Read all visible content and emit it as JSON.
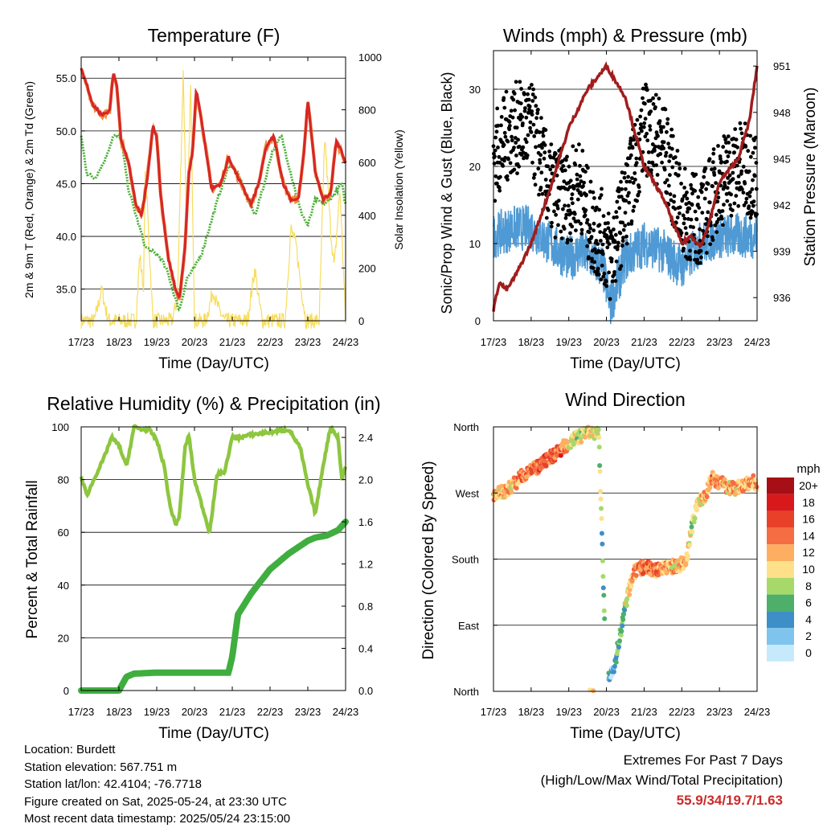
{
  "x_tick_labels": [
    "17/23",
    "18/23",
    "19/23",
    "20/23",
    "21/23",
    "22/23",
    "23/23",
    "24/23"
  ],
  "x_axis_label": "Time (Day/UTC)",
  "panels": {
    "temperature": {
      "title": "Temperature (F)",
      "left_label": "2m & 9m T (Red, Orange) & 2m Td (Green)",
      "right_label": "Solar Insolation (Yellow)",
      "left_ticks": [
        "55.0",
        "50.0",
        "45.0",
        "40.0",
        "35.0"
      ],
      "right_ticks": [
        "1000",
        "800",
        "600",
        "400",
        "200",
        "0"
      ]
    },
    "winds": {
      "title": "Winds (mph) & Pressure (mb)",
      "left_label": "Sonic/Prop Wind & Gust (Blue, Black)",
      "right_label": "Station Pressure (Maroon)",
      "left_ticks": [
        "30",
        "20",
        "10",
        "0"
      ],
      "right_ticks": [
        "951",
        "948",
        "945",
        "942",
        "939",
        "936"
      ]
    },
    "humidity": {
      "title": "Relative Humidity (%) & Precipitation (in)",
      "left_label": "Percent & Total Rainfall",
      "left_ticks": [
        "100",
        "80",
        "60",
        "40",
        "20",
        "0"
      ],
      "right_ticks": [
        "2.4",
        "2.0",
        "1.6",
        "1.2",
        "0.8",
        "0.4",
        "0.0"
      ]
    },
    "direction": {
      "title": "Wind Direction",
      "left_label": "Direction (Colored By Speed)",
      "left_ticks": [
        "North",
        "West",
        "South",
        "East",
        "North"
      ],
      "legend_title": "mph",
      "legend_labels": [
        "20+",
        "18",
        "16",
        "14",
        "12",
        "10",
        "8",
        "6",
        "4",
        "2",
        "0"
      ],
      "legend_colors": [
        "#a50f15",
        "#d7191c",
        "#e8412a",
        "#f46d43",
        "#fdae61",
        "#fee08b",
        "#a6d96a",
        "#4daf6a",
        "#3e8fc8",
        "#7fc4ec",
        "#c6e9fb"
      ]
    }
  },
  "info": {
    "location": "Location: Burdett",
    "elevation": "Station elevation: 567.751 m",
    "latlon": "Station lat/lon: 42.4104; -76.7718",
    "created": "Figure created on Sat, 2025-05-24, at 23:30 UTC",
    "latest": "Most recent data timestamp: 2025/05/24 23:15:00"
  },
  "extremes": {
    "line1": "Extremes For Past 7 Days",
    "line2": "(High/Low/Max Wind/Total Precipitation)",
    "values": "55.9/34/19.7/1.63"
  },
  "chart_data": [
    {
      "type": "line",
      "title": "Temperature (F)",
      "x_unit": "days since 17/23 UTC",
      "xlim": [
        0,
        7
      ],
      "ylim": [
        32,
        57
      ],
      "y2lim": [
        0,
        1000
      ],
      "series": [
        {
          "name": "2m T",
          "color": "#d62728",
          "x": [
            0,
            0.1,
            0.3,
            0.55,
            0.75,
            0.85,
            0.95,
            1.05,
            1.25,
            1.45,
            1.6,
            1.75,
            1.9,
            2.0,
            2.1,
            2.3,
            2.5,
            2.6,
            2.75,
            2.85,
            2.95,
            3.05,
            3.25,
            3.45,
            3.7,
            3.9,
            4.1,
            4.3,
            4.5,
            4.7,
            4.9,
            5.1,
            5.35,
            5.55,
            5.75,
            5.9,
            6.0,
            6.2,
            6.4,
            6.6,
            6.75,
            6.9,
            7.0
          ],
          "y": [
            55.8,
            55.0,
            52.5,
            51.5,
            51.8,
            55.6,
            54.2,
            49.2,
            47.0,
            43.0,
            42.0,
            45.5,
            50.5,
            49.5,
            44.0,
            38.0,
            35.0,
            34.0,
            39.0,
            46.0,
            48.0,
            54.0,
            49.5,
            44.5,
            45.0,
            47.5,
            46.0,
            44.5,
            43.0,
            45.0,
            48.5,
            49.5,
            45.0,
            43.5,
            43.5,
            48.0,
            53.0,
            46.0,
            43.5,
            44.0,
            49.0,
            48.0,
            47.0
          ]
        },
        {
          "name": "2m Td",
          "color": "#4daf3a",
          "x": [
            0,
            0.15,
            0.35,
            0.6,
            0.85,
            1.05,
            1.25,
            1.45,
            1.7,
            1.9,
            2.1,
            2.3,
            2.5,
            2.6,
            2.8,
            3.0,
            3.2,
            3.45,
            3.7,
            3.95,
            4.15,
            4.4,
            4.6,
            4.85,
            5.05,
            5.3,
            5.55,
            5.8,
            6.0,
            6.2,
            6.45,
            6.7,
            6.9,
            7.0
          ],
          "y": [
            49.5,
            46.0,
            45.5,
            47.0,
            49.5,
            49.5,
            44.5,
            42.0,
            39.0,
            38.5,
            38.0,
            36.5,
            34.0,
            33.0,
            36.0,
            37.0,
            38.5,
            41.5,
            44.5,
            47.0,
            46.0,
            43.5,
            42.0,
            45.0,
            48.0,
            49.5,
            46.0,
            42.5,
            41.0,
            43.5,
            43.0,
            44.0,
            45.0,
            43.0
          ]
        },
        {
          "name": "Solar Insolation",
          "color": "#f7dd5e",
          "axis": "right",
          "x": [
            0,
            0.35,
            0.45,
            0.55,
            0.65,
            0.75,
            1.45,
            1.55,
            1.65,
            1.7,
            1.8,
            1.9,
            2.4,
            2.55,
            2.7,
            2.8,
            2.9,
            3.0,
            3.3,
            3.5,
            3.55,
            3.65,
            3.8,
            4.4,
            4.5,
            4.6,
            4.7,
            4.8,
            5.4,
            5.55,
            5.7,
            5.8,
            5.95,
            6.3,
            6.45,
            6.6,
            6.7,
            6.85,
            7.0
          ],
          "y": [
            0,
            0,
            60,
            120,
            40,
            0,
            0,
            250,
            120,
            600,
            280,
            0,
            0,
            80,
            950,
            300,
            900,
            0,
            0,
            120,
            80,
            40,
            0,
            0,
            100,
            200,
            80,
            0,
            0,
            350,
            280,
            150,
            0,
            0,
            700,
            350,
            200,
            500,
            0
          ]
        }
      ]
    },
    {
      "type": "line",
      "title": "Winds (mph) & Pressure (mb)",
      "xlim": [
        0,
        7
      ],
      "ylim": [
        0,
        35
      ],
      "y2lim": [
        934.5,
        952
      ],
      "series": [
        {
          "name": "Wind",
          "color": "#4f9ad4",
          "x": [
            0,
            0.5,
            1,
            1.5,
            2,
            2.3,
            2.6,
            2.9,
            3.1,
            3.5,
            4,
            4.5,
            5,
            5.5,
            6,
            6.5,
            7
          ],
          "y": [
            11,
            12,
            12,
            10,
            8,
            9,
            8,
            7,
            2,
            8,
            10,
            9,
            7,
            10,
            11,
            11,
            11
          ]
        },
        {
          "name": "Gust",
          "color": "#000000",
          "x": [
            0,
            0.5,
            1,
            1.5,
            2,
            2.3,
            2.6,
            2.9,
            3.1,
            3.5,
            4,
            4.5,
            5,
            5.5,
            6,
            6.5,
            7
          ],
          "y": [
            21,
            25,
            25,
            17,
            16,
            18,
            12,
            11,
            8,
            15,
            25,
            23,
            14,
            13,
            18,
            20,
            19
          ]
        },
        {
          "name": "Station Pressure",
          "color": "#a11d1d",
          "axis": "right",
          "x": [
            0,
            0.15,
            0.35,
            0.6,
            1,
            1.5,
            2,
            2.5,
            3,
            3.25,
            3.5,
            4,
            4.5,
            5,
            5.25,
            5.5,
            5.75,
            6,
            6.5,
            6.8,
            7
          ],
          "y": [
            935.2,
            937.0,
            936.5,
            937.5,
            939.5,
            943.0,
            947.0,
            949.5,
            951.0,
            950.0,
            949.0,
            944.5,
            942.5,
            939.5,
            940.0,
            939.3,
            941.0,
            943.5,
            945.0,
            947.5,
            951.0
          ]
        }
      ]
    },
    {
      "type": "line",
      "title": "Relative Humidity (%) & Precipitation (in)",
      "xlim": [
        0,
        7
      ],
      "ylim": [
        0,
        100
      ],
      "y2lim": [
        0,
        2.5
      ],
      "series": [
        {
          "name": "Relative Humidity",
          "color": "#8dc63f",
          "x": [
            0,
            0.15,
            0.4,
            0.6,
            0.8,
            1.0,
            1.2,
            1.4,
            1.6,
            1.8,
            2.0,
            2.2,
            2.35,
            2.5,
            2.6,
            2.75,
            2.85,
            3.0,
            3.2,
            3.4,
            3.6,
            3.8,
            4.0,
            4.2,
            4.5,
            5.0,
            5.5,
            5.8,
            6.0,
            6.2,
            6.4,
            6.6,
            6.8,
            6.9,
            7.0
          ],
          "y": [
            81,
            74,
            82,
            88,
            96,
            93,
            85,
            100,
            99,
            99,
            95,
            85,
            70,
            63,
            66,
            92,
            97,
            80,
            70,
            60,
            82,
            83,
            96,
            96,
            97,
            98,
            99,
            92,
            78,
            67,
            85,
            100,
            96,
            80,
            85
          ]
        },
        {
          "name": "Total Precipitation",
          "color": "#3fae3f",
          "axis": "right",
          "x": [
            0,
            1.0,
            1.2,
            1.4,
            2.0,
            3.0,
            3.5,
            3.9,
            4.0,
            4.15,
            4.5,
            5.0,
            5.5,
            6.0,
            6.2,
            6.5,
            6.8,
            7.0
          ],
          "y": [
            0,
            0,
            0.13,
            0.16,
            0.17,
            0.17,
            0.17,
            0.17,
            0.32,
            0.72,
            0.92,
            1.15,
            1.3,
            1.42,
            1.45,
            1.47,
            1.52,
            1.6
          ]
        }
      ]
    },
    {
      "type": "scatter",
      "title": "Wind Direction",
      "ylim": [
        0,
        360
      ],
      "y_ticks": [
        "North",
        "East",
        "South",
        "West",
        "North"
      ],
      "x": [
        0,
        0.3,
        0.6,
        0.9,
        1.2,
        1.5,
        1.8,
        2.1,
        2.4,
        2.6,
        2.8,
        3.0,
        3.1,
        3.2,
        3.3,
        3.5,
        3.7,
        4.0,
        4.3,
        4.6,
        4.9,
        5.1,
        5.3,
        5.4,
        5.6,
        5.8,
        6.0,
        6.3,
        6.6,
        6.9,
        7.0
      ],
      "y": [
        268,
        272,
        285,
        300,
        305,
        318,
        330,
        342,
        350,
        355,
        348,
        10,
        20,
        30,
        60,
        115,
        160,
        170,
        165,
        168,
        172,
        175,
        230,
        255,
        265,
        290,
        285,
        275,
        280,
        285,
        282
      ],
      "speed": [
        12,
        11,
        12,
        14,
        14,
        15,
        14,
        10,
        9,
        10,
        10,
        3,
        2,
        4,
        5,
        8,
        13,
        14,
        14,
        12,
        11,
        12,
        9,
        9,
        12,
        13,
        13,
        11,
        12,
        12,
        12
      ]
    }
  ]
}
